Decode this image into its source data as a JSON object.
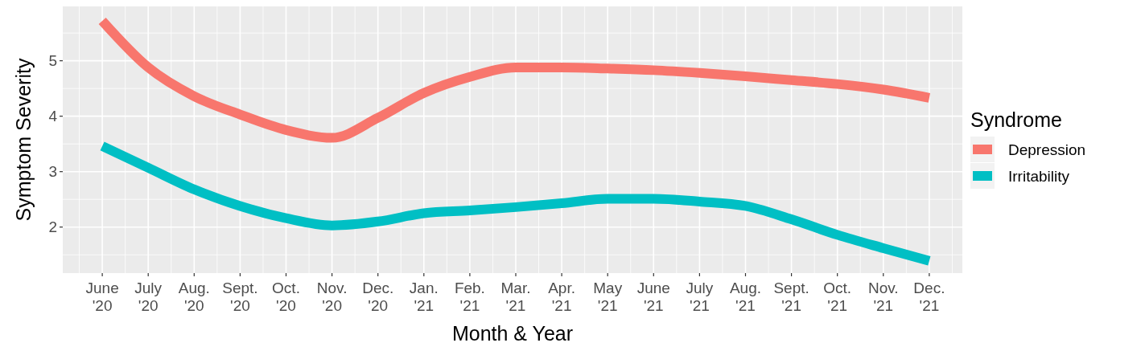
{
  "chart_data": {
    "type": "line",
    "xlabel": "Month & Year",
    "ylabel": "Symptom Severity",
    "legend_title": "Syndrome",
    "categories": [
      "June\n'20",
      "July\n'20",
      "Aug.\n'20",
      "Sept.\n'20",
      "Oct.\n'20",
      "Nov.\n'20",
      "Dec.\n'20",
      "Jan.\n'21",
      "Feb.\n'21",
      "Mar.\n'21",
      "Apr.\n'21",
      "May\n'21",
      "June\n'21",
      "July\n'21",
      "Aug.\n'21",
      "Sept.\n'21",
      "Oct.\n'21",
      "Nov.\n'21",
      "Dec.\n'21"
    ],
    "series": [
      {
        "name": "Depression",
        "color": "#f8766d",
        "values": [
          5.72,
          4.88,
          4.36,
          4.03,
          3.75,
          3.61,
          3.97,
          4.42,
          4.71,
          4.88,
          4.88,
          4.86,
          4.83,
          4.78,
          4.72,
          4.65,
          4.58,
          4.48,
          4.33
        ]
      },
      {
        "name": "Irritability",
        "color": "#00bfc4",
        "values": [
          3.46,
          3.07,
          2.68,
          2.38,
          2.16,
          2.03,
          2.1,
          2.25,
          2.3,
          2.36,
          2.43,
          2.51,
          2.51,
          2.46,
          2.38,
          2.14,
          1.86,
          1.62,
          1.39
        ]
      }
    ],
    "ylim": [
      1.17,
      5.98
    ],
    "yticks": [
      2,
      3,
      4,
      5
    ],
    "grid": true,
    "legend": "right",
    "marker": "none",
    "line_style": "solid"
  }
}
